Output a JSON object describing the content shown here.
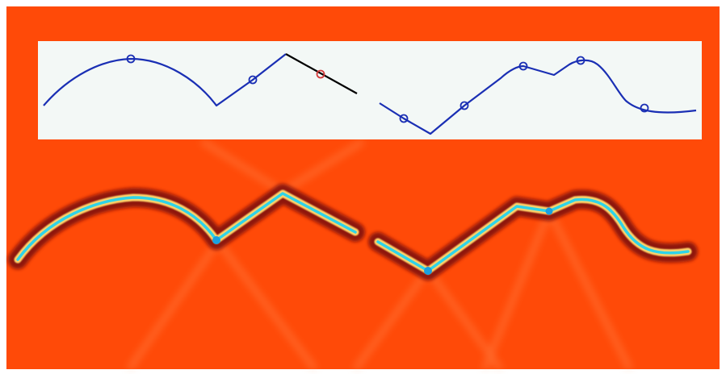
{
  "colors": {
    "page_background": "#ffffff",
    "field_background": "#ff4a08",
    "inset_background": "#f3f8f6",
    "curve_blue": "#1a2fb4",
    "segment_black": "#000000",
    "marker_red": "#d23a3a",
    "reflector_dark": "#7a0c0c",
    "reflector_yellow": "#f6d85a",
    "reflector_cyan": "#2fd3e8"
  },
  "inset": {
    "curve_count": 2,
    "blue_marker_count": 7,
    "red_marker_count": 1,
    "highlighted_segment": "black"
  },
  "image": {
    "reflector_count": 2,
    "style": "red seismic migration image with bright curved reflectors"
  }
}
